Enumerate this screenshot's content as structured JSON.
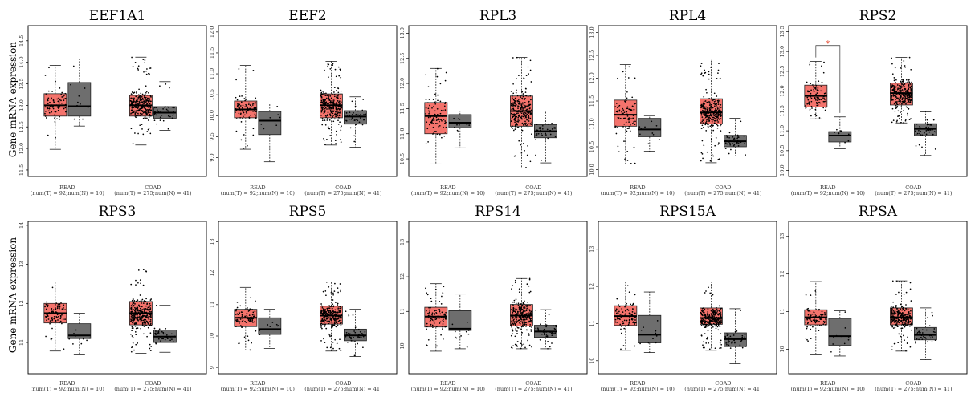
{
  "figure": {
    "ylabel": "Gene mRNA expression",
    "group_labels": [
      "READ",
      "COAD"
    ],
    "group_sublabels": [
      "(num(T) = 92;num(N) = 10)",
      "(num(T) = 275;num(N) = 41)"
    ]
  },
  "colors": {
    "tumor": "#f4736c",
    "normal": "#6e6e6e",
    "significance": "#e8533a",
    "point": "#000000"
  },
  "chart_data": [
    {
      "type": "box",
      "title": "EEF1A1",
      "yticks": [
        "11.5",
        "12.0",
        "12.5",
        "13.0",
        "13.5",
        "14.0",
        "14.5"
      ],
      "ylim": [
        11.35,
        14.85
      ],
      "boxes": [
        {
          "group": "READ",
          "kind": "T",
          "min": 11.98,
          "q1": 12.75,
          "median": 13.0,
          "q3": 13.27,
          "max": 13.93,
          "pts": 92
        },
        {
          "group": "READ",
          "kind": "N",
          "min": 12.52,
          "q1": 12.75,
          "median": 12.98,
          "q3": 13.53,
          "max": 14.08,
          "pts": 10
        },
        {
          "group": "COAD",
          "kind": "T",
          "min": 12.08,
          "q1": 12.75,
          "median": 13.0,
          "q3": 13.23,
          "max": 14.12,
          "pts": 275
        },
        {
          "group": "COAD",
          "kind": "N",
          "min": 12.42,
          "q1": 12.7,
          "median": 12.83,
          "q3": 12.97,
          "max": 13.55,
          "pts": 41
        }
      ]
    },
    {
      "type": "box",
      "title": "EEF2",
      "yticks": [
        "9.0",
        "9.5",
        "10.0",
        "10.5",
        "11.0",
        "11.5",
        "12.0"
      ],
      "ylim": [
        8.55,
        12.15
      ],
      "boxes": [
        {
          "group": "READ",
          "kind": "T",
          "min": 9.2,
          "q1": 9.95,
          "median": 10.15,
          "q3": 10.35,
          "max": 11.2,
          "pts": 92
        },
        {
          "group": "READ",
          "kind": "N",
          "min": 8.9,
          "q1": 9.55,
          "median": 9.88,
          "q3": 10.1,
          "max": 10.3,
          "pts": 10
        },
        {
          "group": "COAD",
          "kind": "T",
          "min": 9.3,
          "q1": 9.95,
          "median": 10.25,
          "q3": 10.52,
          "max": 11.3,
          "pts": 275
        },
        {
          "group": "COAD",
          "kind": "N",
          "min": 9.25,
          "q1": 9.8,
          "median": 9.98,
          "q3": 10.12,
          "max": 10.45,
          "pts": 41
        }
      ]
    },
    {
      "type": "box",
      "title": "RPL3",
      "yticks": [
        "10.5",
        "11.0",
        "11.5",
        "12.0",
        "12.5",
        "13.0"
      ],
      "ylim": [
        10.15,
        13.15
      ],
      "boxes": [
        {
          "group": "READ",
          "kind": "T",
          "min": 10.4,
          "q1": 11.0,
          "median": 11.35,
          "q3": 11.62,
          "max": 12.3,
          "pts": 92
        },
        {
          "group": "READ",
          "kind": "N",
          "min": 10.72,
          "q1": 11.12,
          "median": 11.22,
          "q3": 11.38,
          "max": 11.45,
          "pts": 10
        },
        {
          "group": "COAD",
          "kind": "T",
          "min": 10.32,
          "q1": 11.15,
          "median": 11.45,
          "q3": 11.75,
          "max": 12.52,
          "pts": 275
        },
        {
          "group": "COAD",
          "kind": "N",
          "min": 10.42,
          "q1": 10.92,
          "median": 11.05,
          "q3": 11.18,
          "max": 11.45,
          "pts": 41
        }
      ]
    },
    {
      "type": "box",
      "title": "RPL4",
      "yticks": [
        "10.0",
        "10.5",
        "11.0",
        "11.5",
        "12.0",
        "12.5",
        "13.0"
      ],
      "ylim": [
        9.85,
        13.15
      ],
      "boxes": [
        {
          "group": "READ",
          "kind": "T",
          "min": 10.12,
          "q1": 10.95,
          "median": 11.2,
          "q3": 11.52,
          "max": 12.3,
          "pts": 92
        },
        {
          "group": "READ",
          "kind": "N",
          "min": 10.4,
          "q1": 10.72,
          "median": 10.88,
          "q3": 11.12,
          "max": 11.18,
          "pts": 10
        },
        {
          "group": "COAD",
          "kind": "T",
          "min": 10.15,
          "q1": 11.0,
          "median": 11.25,
          "q3": 11.55,
          "max": 12.42,
          "pts": 275
        },
        {
          "group": "COAD",
          "kind": "N",
          "min": 10.3,
          "q1": 10.5,
          "median": 10.62,
          "q3": 10.75,
          "max": 11.12,
          "pts": 41
        }
      ]
    },
    {
      "type": "box",
      "title": "RPS2",
      "yticks": [
        "10.0",
        "10.5",
        "11.0",
        "11.5",
        "12.0",
        "12.5",
        "13.0",
        "13.5"
      ],
      "ylim": [
        9.85,
        13.65
      ],
      "significance": {
        "between": [
          "READ:T",
          "READ:N"
        ],
        "label": "*",
        "bracket_top": 13.15
      },
      "boxes": [
        {
          "group": "READ",
          "kind": "T",
          "min": 11.3,
          "q1": 11.6,
          "median": 11.88,
          "q3": 12.15,
          "max": 12.75,
          "pts": 92
        },
        {
          "group": "READ",
          "kind": "N",
          "min": 10.55,
          "q1": 10.72,
          "median": 10.88,
          "q3": 10.98,
          "max": 11.35,
          "pts": 10
        },
        {
          "group": "COAD",
          "kind": "T",
          "min": 11.2,
          "q1": 11.65,
          "median": 11.95,
          "q3": 12.2,
          "max": 12.85,
          "pts": 275
        },
        {
          "group": "COAD",
          "kind": "N",
          "min": 10.38,
          "q1": 10.88,
          "median": 11.05,
          "q3": 11.18,
          "max": 11.48,
          "pts": 41
        }
      ]
    },
    {
      "type": "box",
      "title": "RPS3",
      "yticks": [
        "11",
        "12",
        "13",
        "14"
      ],
      "ylim": [
        10.2,
        14.1
      ],
      "boxes": [
        {
          "group": "READ",
          "kind": "T",
          "min": 10.78,
          "q1": 11.5,
          "median": 11.75,
          "q3": 12.0,
          "max": 12.55,
          "pts": 92
        },
        {
          "group": "READ",
          "kind": "N",
          "min": 10.68,
          "q1": 11.1,
          "median": 11.18,
          "q3": 11.48,
          "max": 11.75,
          "pts": 10
        },
        {
          "group": "COAD",
          "kind": "T",
          "min": 10.72,
          "q1": 11.45,
          "median": 11.75,
          "q3": 12.05,
          "max": 12.88,
          "pts": 275
        },
        {
          "group": "COAD",
          "kind": "N",
          "min": 10.75,
          "q1": 11.0,
          "median": 11.15,
          "q3": 11.32,
          "max": 11.95,
          "pts": 41
        }
      ]
    },
    {
      "type": "box",
      "title": "RPS5",
      "yticks": [
        "9",
        "10",
        "11",
        "12",
        "13"
      ],
      "ylim": [
        8.8,
        13.65
      ],
      "boxes": [
        {
          "group": "READ",
          "kind": "T",
          "min": 9.55,
          "q1": 10.3,
          "median": 10.58,
          "q3": 10.85,
          "max": 11.55,
          "pts": 92
        },
        {
          "group": "READ",
          "kind": "N",
          "min": 9.6,
          "q1": 10.05,
          "median": 10.22,
          "q3": 10.58,
          "max": 10.85,
          "pts": 10
        },
        {
          "group": "COAD",
          "kind": "T",
          "min": 9.52,
          "q1": 10.38,
          "median": 10.65,
          "q3": 10.95,
          "max": 11.72,
          "pts": 275
        },
        {
          "group": "COAD",
          "kind": "N",
          "min": 9.35,
          "q1": 9.85,
          "median": 10.02,
          "q3": 10.22,
          "max": 10.85,
          "pts": 41
        }
      ]
    },
    {
      "type": "box",
      "title": "RPS14",
      "yticks": [
        "10",
        "11",
        "12",
        "13"
      ],
      "ylim": [
        9.2,
        13.6
      ],
      "boxes": [
        {
          "group": "READ",
          "kind": "T",
          "min": 9.85,
          "q1": 10.55,
          "median": 10.85,
          "q3": 11.12,
          "max": 11.8,
          "pts": 92
        },
        {
          "group": "READ",
          "kind": "N",
          "min": 9.92,
          "q1": 10.45,
          "median": 10.5,
          "q3": 11.02,
          "max": 11.5,
          "pts": 10
        },
        {
          "group": "COAD",
          "kind": "T",
          "min": 9.92,
          "q1": 10.58,
          "median": 10.88,
          "q3": 11.2,
          "max": 11.95,
          "pts": 275
        },
        {
          "group": "COAD",
          "kind": "N",
          "min": 9.92,
          "q1": 10.25,
          "median": 10.42,
          "q3": 10.6,
          "max": 11.05,
          "pts": 41
        }
      ]
    },
    {
      "type": "box",
      "title": "RPS15A",
      "yticks": [
        "10",
        "11",
        "12",
        "13"
      ],
      "ylim": [
        9.65,
        13.75
      ],
      "boxes": [
        {
          "group": "READ",
          "kind": "T",
          "min": 10.28,
          "q1": 10.95,
          "median": 11.2,
          "q3": 11.48,
          "max": 12.12,
          "pts": 92
        },
        {
          "group": "READ",
          "kind": "N",
          "min": 10.22,
          "q1": 10.48,
          "median": 10.7,
          "q3": 11.22,
          "max": 11.85,
          "pts": 10
        },
        {
          "group": "COAD",
          "kind": "T",
          "min": 10.28,
          "q1": 10.98,
          "median": 11.15,
          "q3": 11.42,
          "max": 12.12,
          "pts": 275
        },
        {
          "group": "COAD",
          "kind": "N",
          "min": 9.92,
          "q1": 10.38,
          "median": 10.58,
          "q3": 10.75,
          "max": 11.4,
          "pts": 41
        }
      ]
    },
    {
      "type": "box",
      "title": "RPSA",
      "yticks": [
        "10",
        "11",
        "12",
        "13"
      ],
      "ylim": [
        9.35,
        13.4
      ],
      "boxes": [
        {
          "group": "READ",
          "kind": "T",
          "min": 9.85,
          "q1": 10.65,
          "median": 10.85,
          "q3": 11.05,
          "max": 11.8,
          "pts": 92
        },
        {
          "group": "READ",
          "kind": "N",
          "min": 9.82,
          "q1": 10.1,
          "median": 10.35,
          "q3": 10.82,
          "max": 11.02,
          "pts": 10
        },
        {
          "group": "COAD",
          "kind": "T",
          "min": 9.95,
          "q1": 10.65,
          "median": 10.85,
          "q3": 11.1,
          "max": 11.82,
          "pts": 275
        },
        {
          "group": "COAD",
          "kind": "N",
          "min": 9.72,
          "q1": 10.25,
          "median": 10.38,
          "q3": 10.58,
          "max": 11.1,
          "pts": 41
        }
      ]
    }
  ]
}
